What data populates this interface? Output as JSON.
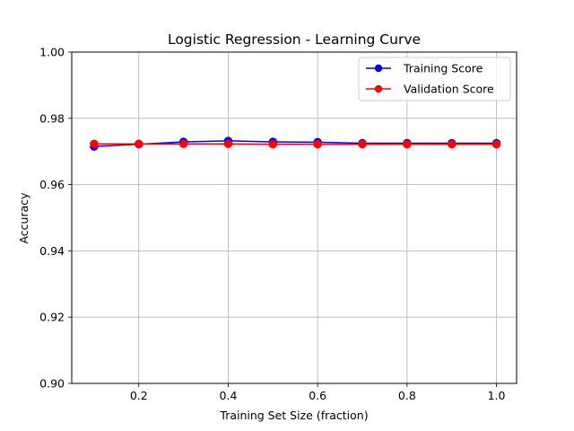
{
  "chart_data": {
    "type": "line",
    "title": "Logistic Regression - Learning Curve",
    "xlabel": "Training Set Size (fraction)",
    "ylabel": "Accuracy",
    "xlim": [
      0.05,
      1.045
    ],
    "ylim": [
      0.9,
      1.0
    ],
    "xticks": [
      0.2,
      0.4,
      0.6,
      0.8,
      1.0
    ],
    "xtick_labels": [
      "0.2",
      "0.4",
      "0.6",
      "0.8",
      "1.0"
    ],
    "yticks": [
      0.9,
      0.92,
      0.94,
      0.96,
      0.98,
      1.0
    ],
    "ytick_labels": [
      "0.90",
      "0.92",
      "0.94",
      "0.96",
      "0.98",
      "1.00"
    ],
    "grid": true,
    "legend_position": "top-right",
    "x": [
      0.1,
      0.2,
      0.3,
      0.4,
      0.5,
      0.6,
      0.7,
      0.8,
      0.9,
      1.0
    ],
    "series": [
      {
        "name": "Training Score",
        "color": "#0000ff",
        "values": [
          0.9715,
          0.9722,
          0.9729,
          0.9732,
          0.9729,
          0.9728,
          0.9725,
          0.9725,
          0.9725,
          0.9725
        ]
      },
      {
        "name": "Validation Score",
        "color": "#ff0000",
        "values": [
          0.9723,
          0.9723,
          0.9723,
          0.9723,
          0.9722,
          0.9722,
          0.9722,
          0.9722,
          0.9722,
          0.9722
        ]
      }
    ]
  }
}
